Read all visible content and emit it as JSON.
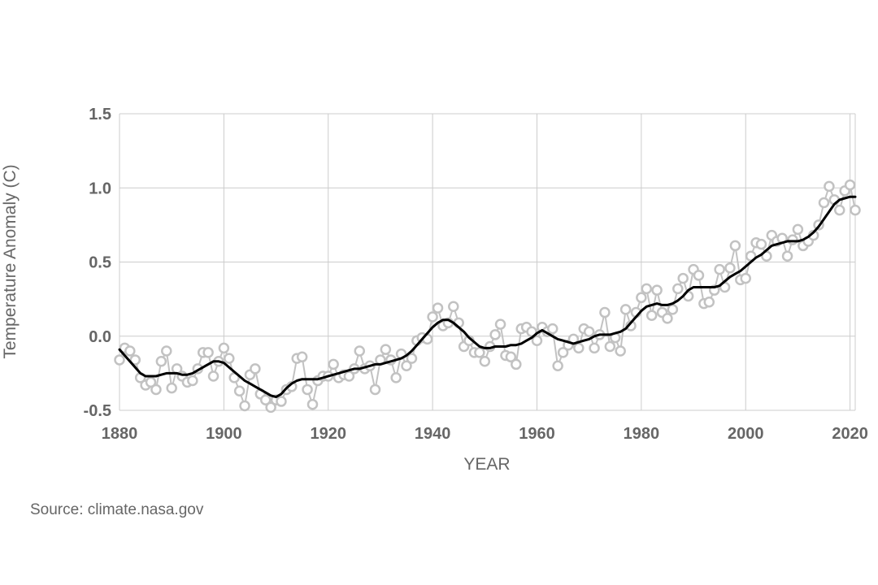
{
  "chart_data": {
    "type": "line",
    "title": "",
    "xlabel": "YEAR",
    "ylabel": "Temperature Anomaly (C)",
    "xlim": [
      1880,
      2021
    ],
    "ylim": [
      -0.5,
      1.5
    ],
    "x_ticks": [
      1880,
      1900,
      1920,
      1940,
      1960,
      1980,
      2000,
      2020
    ],
    "y_ticks": [
      -0.5,
      0.0,
      0.5,
      1.0,
      1.5
    ],
    "y_tick_labels": [
      "-0.5",
      "0.0",
      "0.5",
      "1.0",
      "1.5"
    ],
    "grid": true,
    "legend": "none",
    "colors": {
      "annual": "#c2c2c2",
      "smooth": "#000000",
      "grid": "#cccccc",
      "text": "#666666"
    },
    "x": [
      1880,
      1881,
      1882,
      1883,
      1884,
      1885,
      1886,
      1887,
      1888,
      1889,
      1890,
      1891,
      1892,
      1893,
      1894,
      1895,
      1896,
      1897,
      1898,
      1899,
      1900,
      1901,
      1902,
      1903,
      1904,
      1905,
      1906,
      1907,
      1908,
      1909,
      1910,
      1911,
      1912,
      1913,
      1914,
      1915,
      1916,
      1917,
      1918,
      1919,
      1920,
      1921,
      1922,
      1923,
      1924,
      1925,
      1926,
      1927,
      1928,
      1929,
      1930,
      1931,
      1932,
      1933,
      1934,
      1935,
      1936,
      1937,
      1938,
      1939,
      1940,
      1941,
      1942,
      1943,
      1944,
      1945,
      1946,
      1947,
      1948,
      1949,
      1950,
      1951,
      1952,
      1953,
      1954,
      1955,
      1956,
      1957,
      1958,
      1959,
      1960,
      1961,
      1962,
      1963,
      1964,
      1965,
      1966,
      1967,
      1968,
      1969,
      1970,
      1971,
      1972,
      1973,
      1974,
      1975,
      1976,
      1977,
      1978,
      1979,
      1980,
      1981,
      1982,
      1983,
      1984,
      1985,
      1986,
      1987,
      1988,
      1989,
      1990,
      1991,
      1992,
      1993,
      1994,
      1995,
      1996,
      1997,
      1998,
      1999,
      2000,
      2001,
      2002,
      2003,
      2004,
      2005,
      2006,
      2007,
      2008,
      2009,
      2010,
      2011,
      2012,
      2013,
      2014,
      2015,
      2016,
      2017,
      2018,
      2019,
      2020,
      2021
    ],
    "series": [
      {
        "values": [
          -0.16,
          -0.08,
          -0.1,
          -0.16,
          -0.28,
          -0.33,
          -0.31,
          -0.36,
          -0.17,
          -0.1,
          -0.35,
          -0.22,
          -0.27,
          -0.31,
          -0.3,
          -0.22,
          -0.11,
          -0.11,
          -0.27,
          -0.17,
          -0.08,
          -0.15,
          -0.28,
          -0.37,
          -0.47,
          -0.26,
          -0.22,
          -0.39,
          -0.43,
          -0.48,
          -0.43,
          -0.44,
          -0.36,
          -0.34,
          -0.15,
          -0.14,
          -0.36,
          -0.46,
          -0.3,
          -0.27,
          -0.27,
          -0.19,
          -0.28,
          -0.26,
          -0.27,
          -0.22,
          -0.1,
          -0.22,
          -0.2,
          -0.36,
          -0.16,
          -0.09,
          -0.16,
          -0.28,
          -0.12,
          -0.2,
          -0.15,
          -0.03,
          -0.01,
          -0.02,
          0.13,
          0.19,
          0.07,
          0.09,
          0.2,
          0.09,
          -0.07,
          -0.03,
          -0.11,
          -0.11,
          -0.17,
          -0.07,
          0.01,
          0.08,
          -0.13,
          -0.14,
          -0.19,
          0.05,
          0.06,
          0.03,
          -0.03,
          0.06,
          0.03,
          0.05,
          -0.2,
          -0.11,
          -0.06,
          -0.02,
          -0.08,
          0.05,
          0.03,
          -0.08,
          0.01,
          0.16,
          -0.07,
          -0.01,
          -0.1,
          0.18,
          0.07,
          0.16,
          0.26,
          0.32,
          0.14,
          0.31,
          0.16,
          0.12,
          0.18,
          0.32,
          0.39,
          0.27,
          0.45,
          0.41,
          0.22,
          0.23,
          0.31,
          0.45,
          0.33,
          0.46,
          0.61,
          0.38,
          0.39,
          0.54,
          0.63,
          0.62,
          0.54,
          0.68,
          0.64,
          0.66,
          0.54,
          0.65,
          0.72,
          0.61,
          0.64,
          0.68,
          0.75,
          0.9,
          1.01,
          0.92,
          0.85,
          0.98,
          1.02,
          0.85
        ]
      },
      {
        "values": [
          -0.09,
          -0.13,
          -0.17,
          -0.21,
          -0.25,
          -0.27,
          -0.27,
          -0.27,
          -0.26,
          -0.25,
          -0.25,
          -0.25,
          -0.26,
          -0.26,
          -0.25,
          -0.23,
          -0.21,
          -0.19,
          -0.17,
          -0.17,
          -0.18,
          -0.21,
          -0.24,
          -0.27,
          -0.3,
          -0.32,
          -0.34,
          -0.36,
          -0.38,
          -0.4,
          -0.41,
          -0.39,
          -0.35,
          -0.32,
          -0.3,
          -0.29,
          -0.29,
          -0.29,
          -0.29,
          -0.28,
          -0.27,
          -0.26,
          -0.25,
          -0.24,
          -0.23,
          -0.22,
          -0.22,
          -0.21,
          -0.2,
          -0.19,
          -0.19,
          -0.18,
          -0.17,
          -0.16,
          -0.15,
          -0.13,
          -0.1,
          -0.06,
          -0.02,
          0.02,
          0.06,
          0.09,
          0.11,
          0.11,
          0.09,
          0.06,
          0.03,
          -0.01,
          -0.04,
          -0.07,
          -0.08,
          -0.08,
          -0.07,
          -0.07,
          -0.07,
          -0.06,
          -0.06,
          -0.05,
          -0.03,
          -0.01,
          0.02,
          0.04,
          0.02,
          0.0,
          -0.02,
          -0.03,
          -0.04,
          -0.05,
          -0.04,
          -0.03,
          -0.02,
          0.0,
          0.01,
          0.01,
          0.01,
          0.02,
          0.03,
          0.05,
          0.09,
          0.13,
          0.17,
          0.2,
          0.21,
          0.22,
          0.21,
          0.21,
          0.22,
          0.24,
          0.27,
          0.31,
          0.33,
          0.33,
          0.33,
          0.33,
          0.33,
          0.34,
          0.37,
          0.4,
          0.42,
          0.44,
          0.47,
          0.5,
          0.53,
          0.55,
          0.58,
          0.61,
          0.62,
          0.63,
          0.64,
          0.64,
          0.64,
          0.65,
          0.67,
          0.7,
          0.74,
          0.79,
          0.84,
          0.89,
          0.92,
          0.93,
          0.94,
          0.94
        ]
      }
    ]
  },
  "source": "Source: climate.nasa.gov"
}
